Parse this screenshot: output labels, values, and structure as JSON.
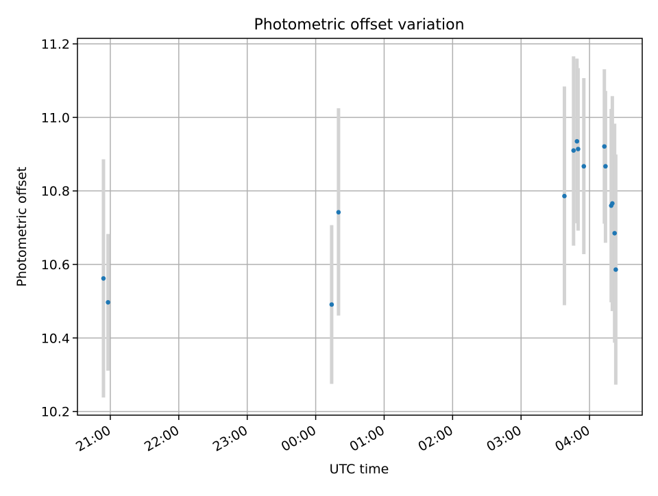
{
  "chart_data": {
    "type": "scatter",
    "title": "Photometric offset variation",
    "xlabel": "UTC time",
    "ylabel": "Photometric offset",
    "x_tick_labels": [
      "21:00",
      "22:00",
      "23:00",
      "00:00",
      "01:00",
      "02:00",
      "03:00",
      "04:00"
    ],
    "x_tick_hours": [
      21,
      22,
      23,
      24,
      25,
      26,
      27,
      28
    ],
    "y_ticks": [
      10.2,
      10.4,
      10.6,
      10.8,
      11.0,
      11.2
    ],
    "y_tick_labels": [
      "10.2",
      "10.4",
      "10.6",
      "10.8",
      "11.0",
      "11.2"
    ],
    "xlim_hours": [
      20.52,
      28.77
    ],
    "ylim": [
      10.19,
      11.215
    ],
    "grid": true,
    "point_color": "#1f77b4",
    "errorbar_color": "#d3d3d3",
    "points": [
      {
        "t": "20:54",
        "y": 10.562,
        "ylo": 10.238,
        "yhi": 10.886
      },
      {
        "t": "20:58",
        "y": 10.497,
        "ylo": 10.311,
        "yhi": 10.683
      },
      {
        "t": "00:14",
        "y": 10.491,
        "ylo": 10.275,
        "yhi": 10.707
      },
      {
        "t": "00:20",
        "y": 10.742,
        "ylo": 10.461,
        "yhi": 11.025
      },
      {
        "t": "03:38",
        "y": 10.786,
        "ylo": 10.489,
        "yhi": 11.084
      },
      {
        "t": "03:46",
        "y": 10.91,
        "ylo": 10.651,
        "yhi": 11.166
      },
      {
        "t": "03:49",
        "y": 10.935,
        "ylo": 10.712,
        "yhi": 11.16
      },
      {
        "t": "03:50",
        "y": 10.914,
        "ylo": 10.692,
        "yhi": 11.134
      },
      {
        "t": "03:55",
        "y": 10.867,
        "ylo": 10.628,
        "yhi": 11.107
      },
      {
        "t": "04:13",
        "y": 10.921,
        "ylo": 10.711,
        "yhi": 11.131
      },
      {
        "t": "04:14",
        "y": 10.867,
        "ylo": 10.659,
        "yhi": 11.072
      },
      {
        "t": "04:19",
        "y": 10.76,
        "ylo": 10.497,
        "yhi": 11.023
      },
      {
        "t": "04:20",
        "y": 10.766,
        "ylo": 10.473,
        "yhi": 11.058
      },
      {
        "t": "04:22",
        "y": 10.685,
        "ylo": 10.387,
        "yhi": 10.983
      },
      {
        "t": "04:23",
        "y": 10.586,
        "ylo": 10.273,
        "yhi": 10.899
      }
    ]
  }
}
